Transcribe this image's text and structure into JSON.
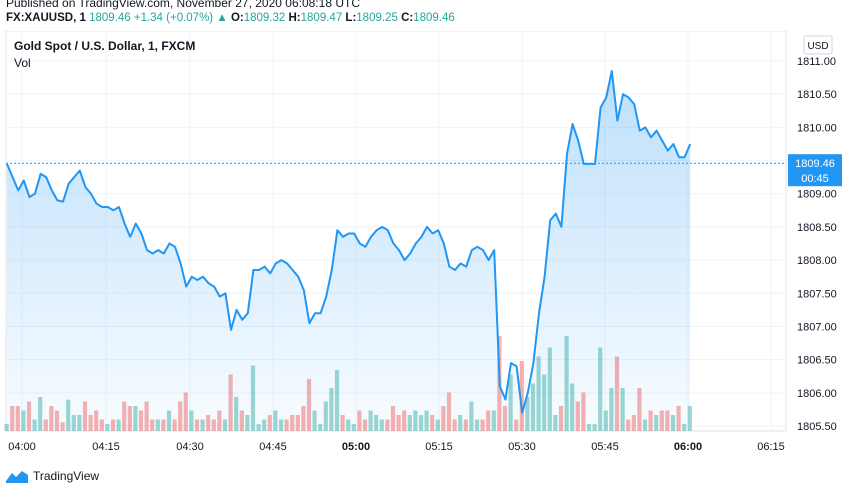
{
  "header": {
    "published": "Published on TradingView.com, November 27, 2020 06:08:18 UTC",
    "symbol": "FX:XAUUSD, 1",
    "last": "1809.46",
    "change": "+1.34 (+0.07%)",
    "o_label": "O:",
    "o": "1809.32",
    "h_label": "H:",
    "h": "1809.47",
    "l_label": "L:",
    "l": "1809.25",
    "c_label": "C:",
    "c": "1809.46"
  },
  "footer": {
    "brand": "TradingView"
  },
  "colors": {
    "line": "#2196f3",
    "up": "#26a69a",
    "down": "#ef5350",
    "price_tag": "#2196f3"
  },
  "chart_data": {
    "type": "area",
    "title": "Gold Spot / U.S. Dollar, 1, FXCM",
    "volume_label": "Vol",
    "currency": "USD",
    "last_price_label": "1809.46",
    "countdown_label": "00:45",
    "x_tick_labels": [
      "04:00",
      "04:15",
      "04:30",
      "04:45",
      "05:00",
      "05:15",
      "05:30",
      "05:45",
      "06:00",
      "06:15"
    ],
    "y_tick_labels": [
      "1811.00",
      "1810.50",
      "1810.00",
      "1809.50",
      "1809.00",
      "1808.50",
      "1808.00",
      "1807.50",
      "1807.00",
      "1806.50",
      "1806.00",
      "1805.50"
    ],
    "ylim": [
      1805.5,
      1811.0
    ],
    "grid": true,
    "price": [
      1809.45,
      1809.25,
      1809.05,
      1809.2,
      1808.95,
      1809.0,
      1809.3,
      1809.25,
      1809.05,
      1808.9,
      1808.88,
      1809.15,
      1809.25,
      1809.35,
      1809.1,
      1809.0,
      1808.85,
      1808.8,
      1808.8,
      1808.75,
      1808.8,
      1808.55,
      1808.35,
      1808.55,
      1808.4,
      1808.15,
      1808.1,
      1808.15,
      1808.1,
      1808.25,
      1808.2,
      1807.95,
      1807.6,
      1807.75,
      1807.7,
      1807.75,
      1807.65,
      1807.6,
      1807.45,
      1807.5,
      1806.95,
      1807.25,
      1807.1,
      1807.2,
      1807.85,
      1807.85,
      1807.9,
      1807.8,
      1807.95,
      1808.0,
      1807.95,
      1807.85,
      1807.75,
      1807.55,
      1807.05,
      1807.2,
      1807.2,
      1807.45,
      1807.85,
      1808.45,
      1808.35,
      1808.4,
      1808.4,
      1808.25,
      1808.2,
      1808.35,
      1808.45,
      1808.5,
      1808.45,
      1808.25,
      1808.15,
      1808.0,
      1808.1,
      1808.25,
      1808.35,
      1808.5,
      1808.4,
      1808.45,
      1808.25,
      1807.9,
      1807.85,
      1807.95,
      1807.9,
      1808.15,
      1808.2,
      1808.15,
      1808.0,
      1808.15,
      1806.1,
      1805.9,
      1806.45,
      1806.4,
      1805.7,
      1806.0,
      1806.45,
      1807.2,
      1807.75,
      1808.6,
      1808.7,
      1808.5,
      1809.6,
      1810.05,
      1809.8,
      1809.45,
      1809.45,
      1809.45,
      1810.3,
      1810.45,
      1810.85,
      1810.1,
      1810.5,
      1810.45,
      1810.35,
      1809.95,
      1810.0,
      1809.85,
      1809.95,
      1809.8,
      1809.65,
      1809.75,
      1809.55,
      1809.55,
      1809.75
    ]
  }
}
